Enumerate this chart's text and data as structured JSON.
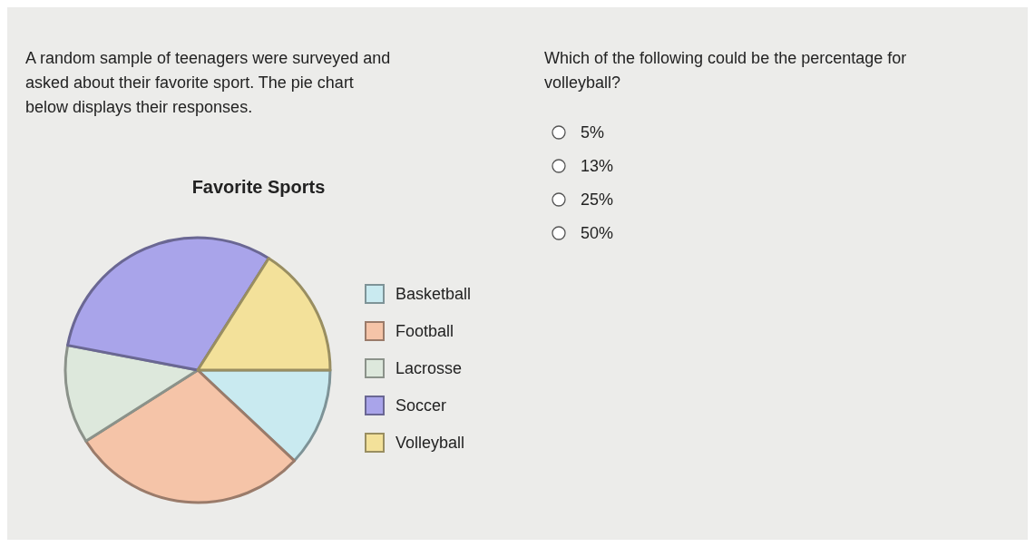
{
  "chart_data": {
    "type": "pie",
    "title": "Favorite Sports",
    "categories": [
      "Basketball",
      "Football",
      "Lacrosse",
      "Soccer",
      "Volleyball"
    ],
    "values": [
      12,
      29,
      12,
      31,
      16
    ],
    "colors": [
      "#c9eaf0",
      "#f5c4a8",
      "#dde8dc",
      "#a9a4ea",
      "#f3e19a"
    ],
    "legend": "right",
    "annotations": [
      "A random sample of teenagers were surveyed and asked about their favorite sport. The pie chart below displays their responses.",
      "Which of the following could be the percentage for volleyball?",
      "5%",
      "13%",
      "25%",
      "50%"
    ]
  }
}
